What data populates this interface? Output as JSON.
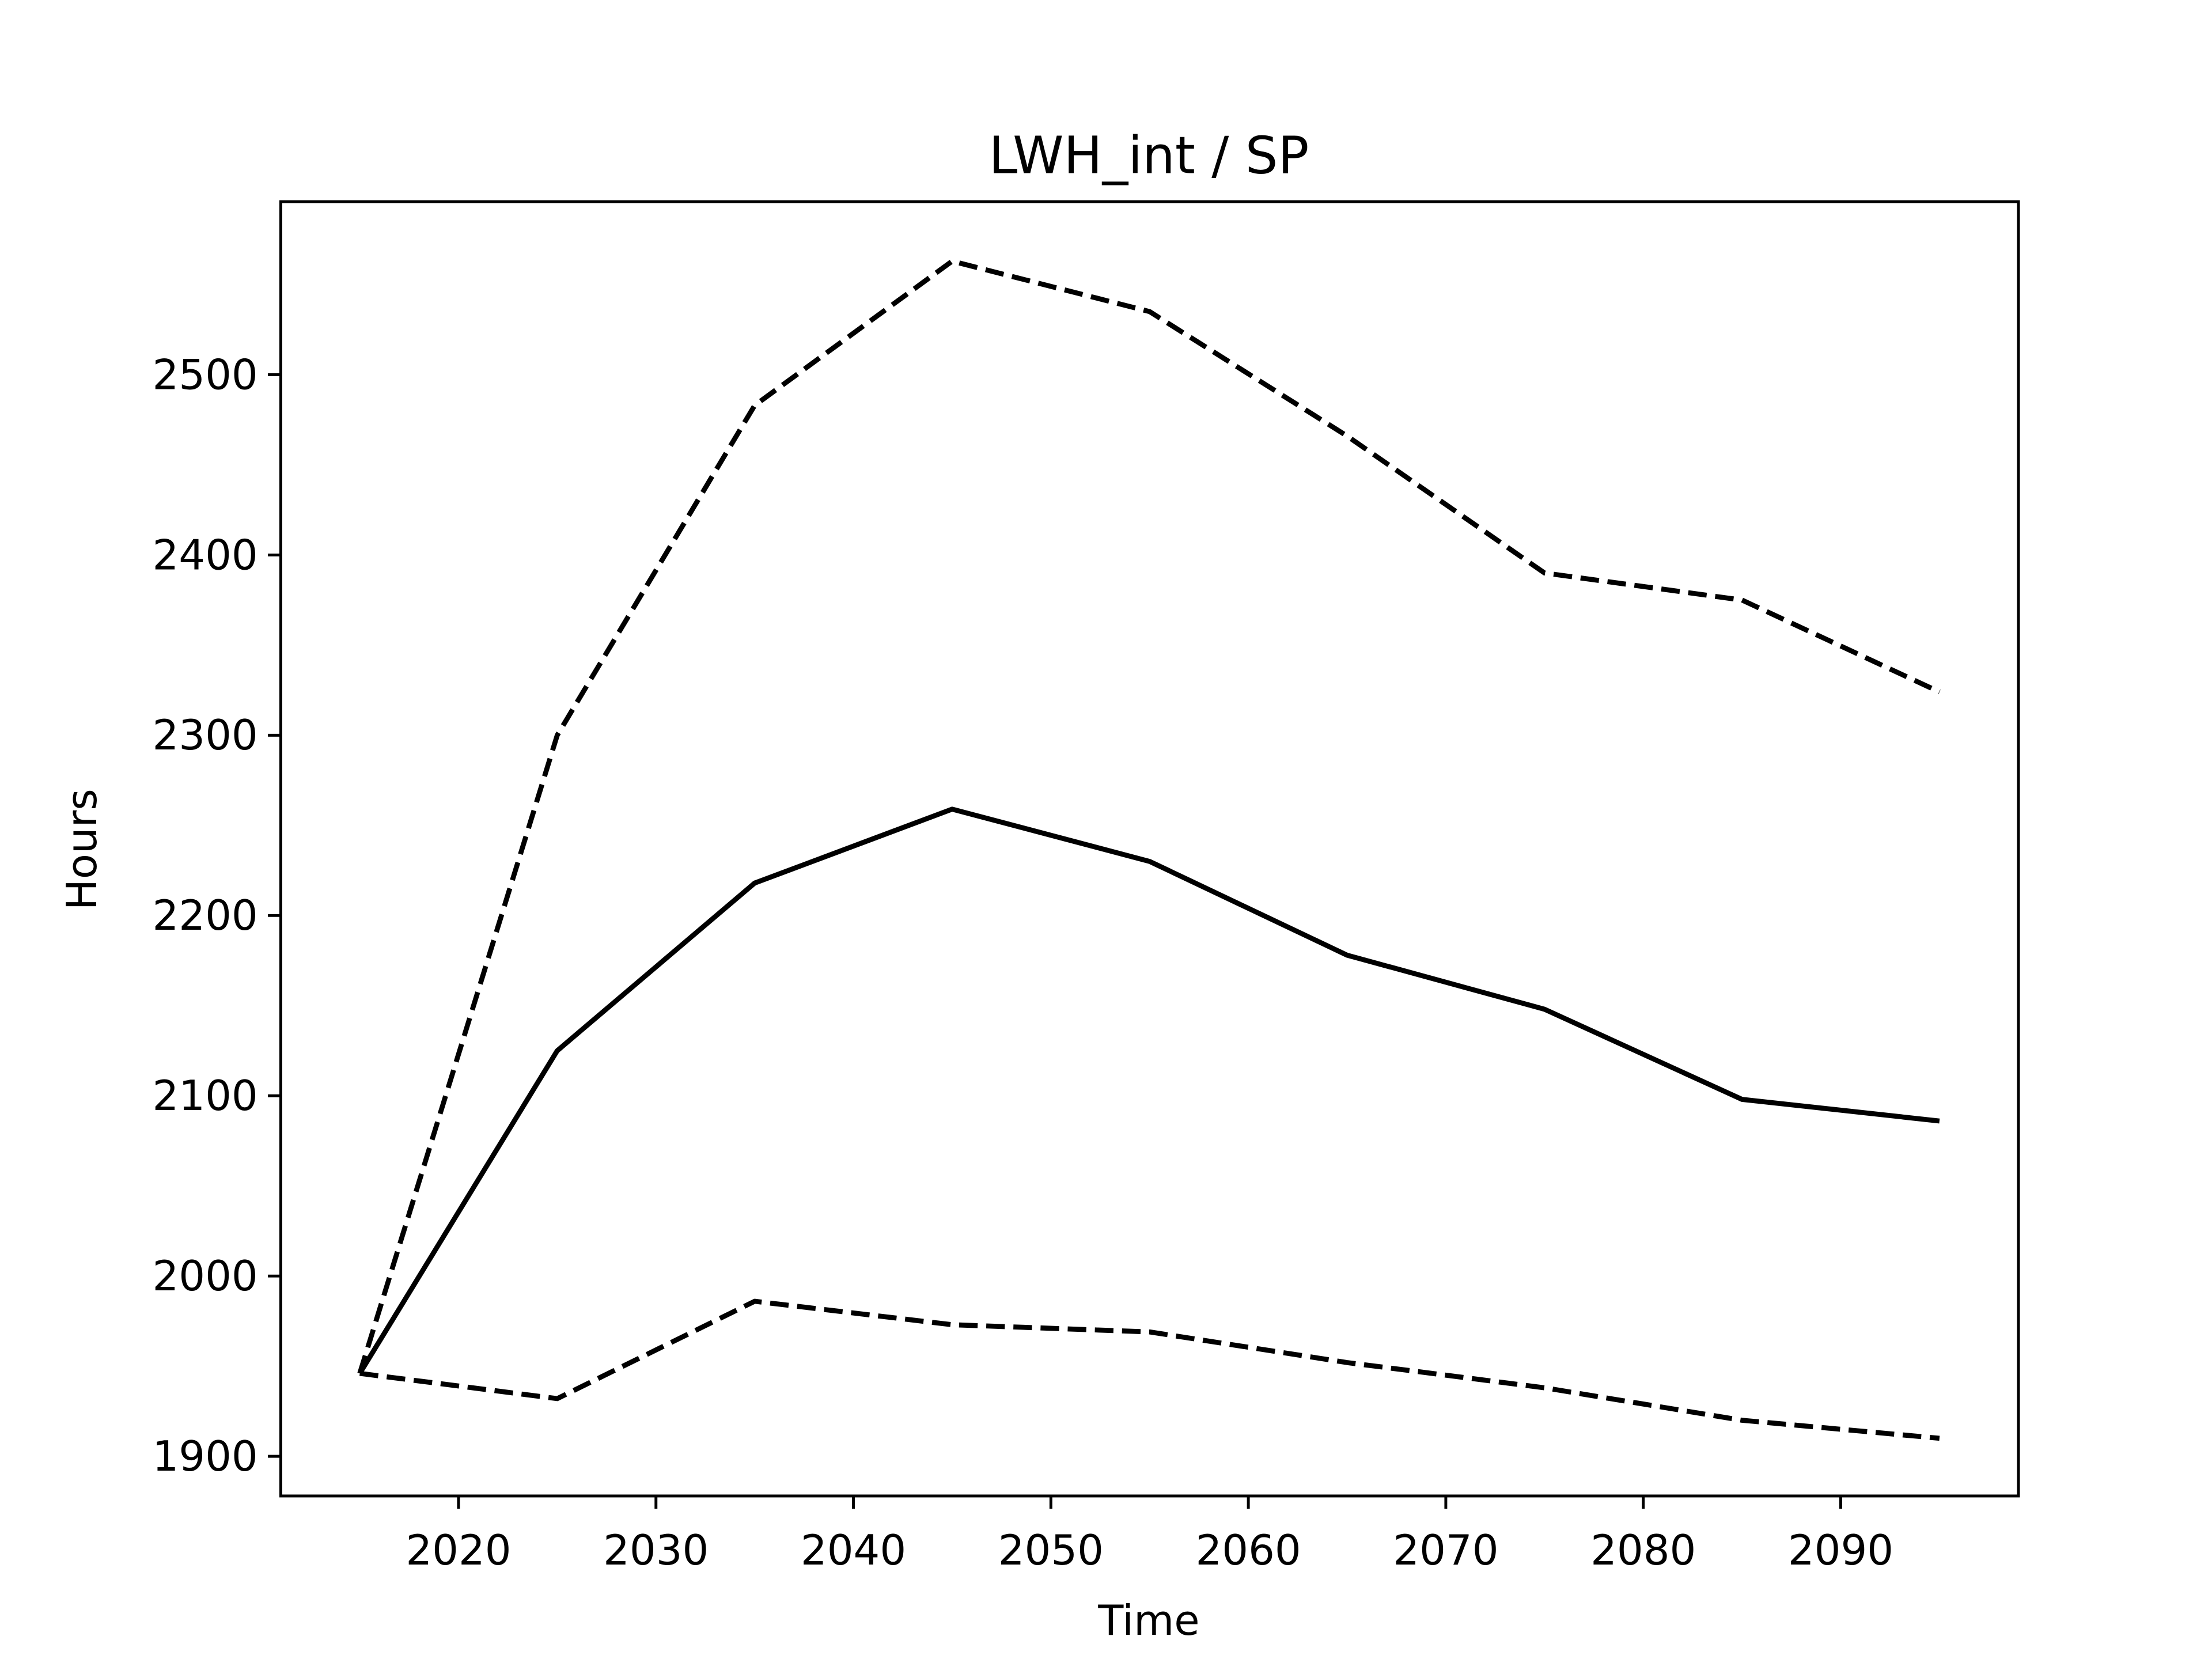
{
  "chart_data": {
    "type": "line",
    "title": "LWH_int / SP",
    "xlabel": "Time",
    "ylabel": "Hours",
    "x": [
      2015,
      2025,
      2035,
      2045,
      2055,
      2065,
      2075,
      2085,
      2095
    ],
    "series": [
      {
        "color": "#000000",
        "dashed": false,
        "values": [
          1946,
          2125,
          2218,
          2259,
          2230,
          2178,
          2148,
          2098,
          2086
        ]
      },
      {
        "color": "#000000",
        "dashed": true,
        "values": [
          1946,
          2300,
          2483,
          2563,
          2535,
          2466,
          2390,
          2375,
          2324
        ]
      },
      {
        "color": "#000000",
        "dashed": true,
        "values": [
          1946,
          1932,
          1986,
          1973,
          1969,
          1952,
          1938,
          1920,
          1910
        ]
      }
    ],
    "xlim": [
      2011,
      2099
    ],
    "xticks": [
      2020,
      2030,
      2040,
      2050,
      2060,
      2070,
      2080,
      2090
    ],
    "ylim": [
      1878,
      2596
    ],
    "yticks": [
      1900,
      2000,
      2100,
      2200,
      2300,
      2400,
      2500
    ],
    "grid": false
  }
}
